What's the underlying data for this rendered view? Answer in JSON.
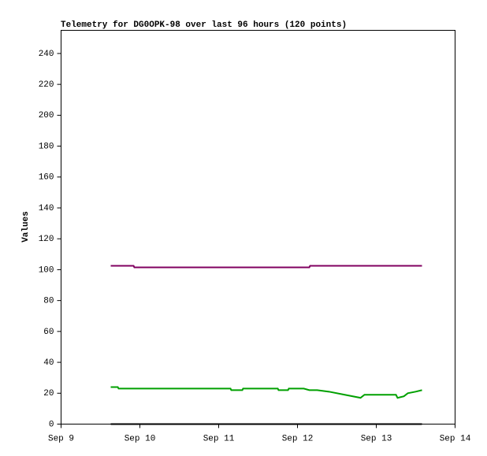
{
  "chart_data": {
    "type": "line",
    "title": "Telemetry for DG0OPK-98 over last 96 hours (120 points)",
    "y_label": "Values",
    "x": [
      9.63,
      9.72,
      9.73,
      9.92,
      9.93,
      11.15,
      11.16,
      11.3,
      11.31,
      11.75,
      11.76,
      11.88,
      11.89,
      12.08,
      12.15,
      12.16,
      12.25,
      12.4,
      12.6,
      12.8,
      12.85,
      13.25,
      13.27,
      13.35,
      13.4,
      13.5,
      13.58
    ],
    "series": [
      {
        "color": "#800060",
        "values": [
          102.5,
          102.5,
          102.5,
          102.5,
          101.5,
          101.5,
          101.5,
          101.5,
          101.5,
          101.5,
          101.5,
          101.5,
          101.5,
          101.5,
          101.5,
          102.5,
          102.5,
          102.5,
          102.5,
          102.5,
          102.5,
          102.5,
          102.5,
          102.5,
          102.5,
          102.5,
          102.5
        ]
      },
      {
        "color": "#00a000",
        "values": [
          24,
          24,
          23,
          23,
          23,
          23,
          22,
          22,
          23,
          23,
          22,
          22,
          23,
          23,
          22,
          22,
          22,
          21,
          19,
          17,
          19,
          19,
          17,
          18,
          20,
          21,
          22
        ]
      },
      {
        "color": "#000000",
        "values": [
          0,
          0,
          0,
          0,
          0,
          0,
          0,
          0,
          0,
          0,
          0,
          0,
          0,
          0,
          0,
          0,
          0,
          0,
          0,
          0,
          0,
          0,
          0,
          0,
          0,
          0,
          0
        ]
      }
    ],
    "xlim": [
      9,
      14
    ],
    "xticks": [
      {
        "value": 9,
        "label": "Sep 9"
      },
      {
        "value": 10,
        "label": "Sep 10"
      },
      {
        "value": 11,
        "label": "Sep 11"
      },
      {
        "value": 12,
        "label": "Sep 12"
      },
      {
        "value": 13,
        "label": "Sep 13"
      },
      {
        "value": 14,
        "label": "Sep 14"
      }
    ],
    "ylim": [
      0,
      255
    ],
    "yticks": [
      0,
      20,
      40,
      60,
      80,
      100,
      120,
      140,
      160,
      180,
      200,
      220,
      240
    ]
  }
}
